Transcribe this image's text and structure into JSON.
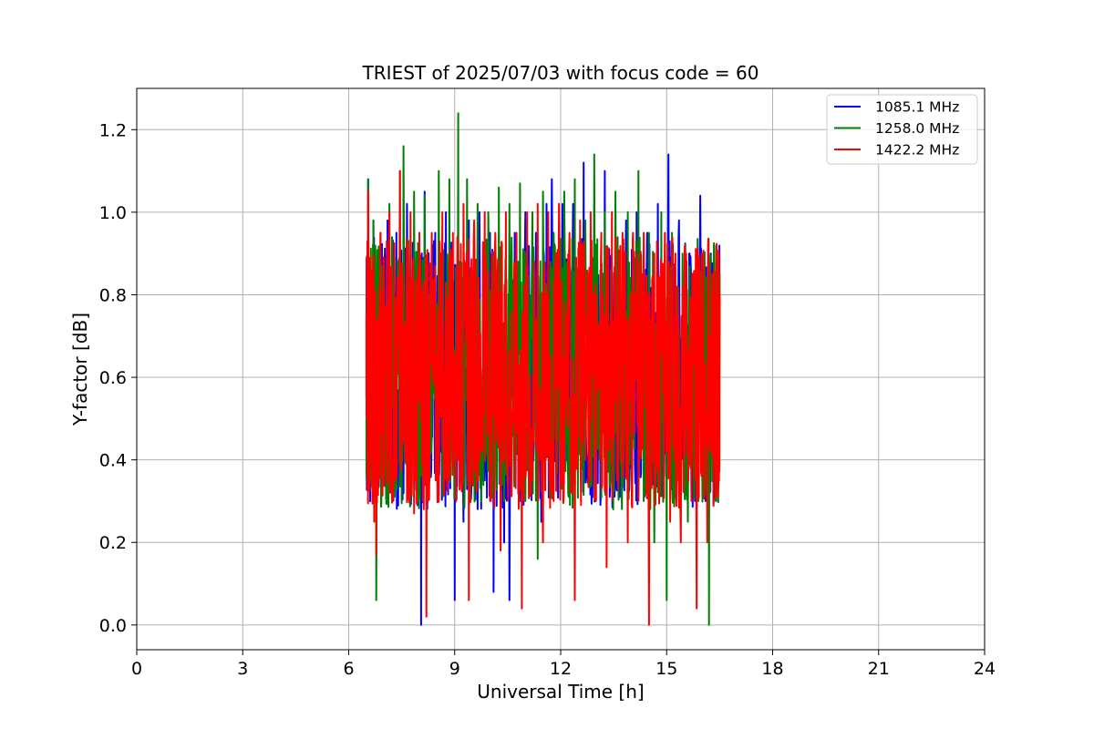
{
  "chart_data": {
    "type": "line",
    "title": "TRIEST of 2025/07/03 with focus code = 60",
    "xlabel": "Universal Time [h]",
    "ylabel": "Y-factor [dB]",
    "xlim": [
      0,
      24
    ],
    "ylim": [
      -0.06,
      1.3
    ],
    "xticks": [
      0,
      3,
      6,
      9,
      12,
      15,
      18,
      21,
      24
    ],
    "xtick_labels": [
      "0",
      "3",
      "6",
      "9",
      "12",
      "15",
      "18",
      "21",
      "24"
    ],
    "yticks": [
      0.0,
      0.2,
      0.4,
      0.6,
      0.8,
      1.0,
      1.2
    ],
    "ytick_labels": [
      "0.0",
      "0.2",
      "0.4",
      "0.6",
      "0.8",
      "1.0",
      "1.2"
    ],
    "grid": true,
    "legend_position": "top-right",
    "x_range_of_data": [
      6.5,
      16.5
    ],
    "series": [
      {
        "name": "1085.1 MHz",
        "color": "#0000ff",
        "points": [
          [
            6.5,
            0.55
          ],
          [
            6.55,
            1.08
          ],
          [
            6.62,
            0.62
          ],
          [
            6.7,
            0.98
          ],
          [
            6.8,
            0.4
          ],
          [
            6.9,
            0.92
          ],
          [
            7.0,
            0.5
          ],
          [
            7.1,
            0.98
          ],
          [
            7.2,
            0.37
          ],
          [
            7.35,
            0.95
          ],
          [
            7.5,
            0.55
          ],
          [
            7.65,
            1.02
          ],
          [
            7.8,
            0.45
          ],
          [
            7.95,
            0.29
          ],
          [
            8.05,
            0.0
          ],
          [
            8.15,
            1.05
          ],
          [
            8.3,
            0.48
          ],
          [
            8.45,
            0.95
          ],
          [
            8.6,
            0.42
          ],
          [
            8.75,
            1.0
          ],
          [
            8.9,
            0.5
          ],
          [
            9.0,
            0.06
          ],
          [
            9.1,
            0.9
          ],
          [
            9.25,
            0.25
          ],
          [
            9.4,
            0.98
          ],
          [
            9.55,
            0.45
          ],
          [
            9.7,
            1.0
          ],
          [
            9.85,
            0.35
          ],
          [
            10.0,
            0.95
          ],
          [
            10.1,
            0.08
          ],
          [
            10.25,
            0.9
          ],
          [
            10.4,
            0.2
          ],
          [
            10.55,
            0.06
          ],
          [
            10.7,
            0.95
          ],
          [
            10.85,
            0.3
          ],
          [
            11.0,
            1.0
          ],
          [
            11.15,
            0.4
          ],
          [
            11.3,
            0.95
          ],
          [
            11.45,
            0.25
          ],
          [
            11.6,
            1.02
          ],
          [
            11.75,
            1.08
          ],
          [
            11.9,
            0.45
          ],
          [
            12.05,
            1.02
          ],
          [
            12.2,
            0.4
          ],
          [
            12.35,
            1.02
          ],
          [
            12.5,
            0.55
          ],
          [
            12.65,
            1.12
          ],
          [
            12.8,
            0.5
          ],
          [
            12.95,
            1.02
          ],
          [
            13.1,
            0.45
          ],
          [
            13.25,
            1.1
          ],
          [
            13.4,
            0.35
          ],
          [
            13.55,
            1.0
          ],
          [
            13.7,
            0.45
          ],
          [
            13.85,
            0.98
          ],
          [
            14.0,
            0.38
          ],
          [
            14.15,
            1.0
          ],
          [
            14.3,
            0.5
          ],
          [
            14.45,
            0.95
          ],
          [
            14.6,
            0.35
          ],
          [
            14.75,
            1.02
          ],
          [
            14.9,
            0.4
          ],
          [
            15.05,
            1.14
          ],
          [
            15.2,
            0.48
          ],
          [
            15.35,
            0.98
          ],
          [
            15.5,
            0.35
          ],
          [
            15.65,
            0.9
          ],
          [
            15.8,
            0.3
          ],
          [
            15.95,
            1.04
          ],
          [
            16.1,
            0.3
          ],
          [
            16.25,
            0.9
          ],
          [
            16.4,
            0.3
          ],
          [
            16.5,
            0.7
          ]
        ]
      },
      {
        "name": "1258.0 MHz",
        "color": "#008000",
        "points": [
          [
            6.5,
            0.5
          ],
          [
            6.55,
            1.08
          ],
          [
            6.62,
            0.55
          ],
          [
            6.7,
            0.98
          ],
          [
            6.78,
            0.06
          ],
          [
            6.9,
            0.95
          ],
          [
            7.0,
            0.35
          ],
          [
            7.15,
            1.02
          ],
          [
            7.3,
            0.31
          ],
          [
            7.45,
            1.1
          ],
          [
            7.55,
            1.16
          ],
          [
            7.7,
            0.45
          ],
          [
            7.85,
            1.05
          ],
          [
            8.0,
            0.5
          ],
          [
            8.15,
            1.04
          ],
          [
            8.35,
            0.45
          ],
          [
            8.55,
            1.1
          ],
          [
            8.7,
            0.45
          ],
          [
            8.85,
            1.08
          ],
          [
            9.0,
            0.5
          ],
          [
            9.1,
            1.24
          ],
          [
            9.2,
            0.35
          ],
          [
            9.35,
            1.08
          ],
          [
            9.5,
            0.4
          ],
          [
            9.65,
            1.02
          ],
          [
            9.8,
            0.45
          ],
          [
            9.95,
            1.0
          ],
          [
            10.1,
            0.35
          ],
          [
            10.25,
            1.06
          ],
          [
            10.4,
            0.3
          ],
          [
            10.55,
            1.02
          ],
          [
            10.7,
            0.35
          ],
          [
            10.85,
            1.07
          ],
          [
            11.0,
            0.3
          ],
          [
            11.2,
            1.0
          ],
          [
            11.35,
            0.16
          ],
          [
            11.5,
            1.05
          ],
          [
            11.65,
            0.5
          ],
          [
            11.8,
            0.95
          ],
          [
            11.95,
            0.45
          ],
          [
            12.1,
            1.05
          ],
          [
            12.25,
            0.55
          ],
          [
            12.4,
            1.08
          ],
          [
            12.55,
            0.45
          ],
          [
            12.7,
            0.98
          ],
          [
            12.85,
            0.5
          ],
          [
            12.95,
            1.14
          ],
          [
            13.1,
            0.4
          ],
          [
            13.25,
            1.0
          ],
          [
            13.4,
            0.35
          ],
          [
            13.55,
            1.05
          ],
          [
            13.7,
            0.4
          ],
          [
            13.9,
            1.0
          ],
          [
            14.05,
            0.45
          ],
          [
            14.2,
            1.1
          ],
          [
            14.35,
            0.3
          ],
          [
            14.5,
            0.95
          ],
          [
            14.65,
            0.2
          ],
          [
            14.85,
            1.0
          ],
          [
            15.0,
            0.06
          ],
          [
            15.15,
            0.95
          ],
          [
            15.3,
            0.35
          ],
          [
            15.45,
            0.9
          ],
          [
            15.6,
            0.25
          ],
          [
            15.75,
            0.85
          ],
          [
            15.9,
            0.3
          ],
          [
            16.05,
            0.88
          ],
          [
            16.2,
            0.0
          ],
          [
            16.3,
            0.8
          ],
          [
            16.45,
            0.35
          ],
          [
            16.5,
            0.85
          ]
        ]
      },
      {
        "name": "1422.2 MHz",
        "color": "#ff0000",
        "points": [
          [
            6.5,
            0.75
          ],
          [
            6.55,
            1.05
          ],
          [
            6.65,
            0.65
          ],
          [
            6.72,
            0.25
          ],
          [
            6.78,
            0.17
          ],
          [
            6.9,
            0.95
          ],
          [
            7.0,
            0.45
          ],
          [
            7.15,
            1.0
          ],
          [
            7.3,
            0.55
          ],
          [
            7.45,
            1.1
          ],
          [
            7.6,
            0.4
          ],
          [
            7.75,
            1.0
          ],
          [
            7.85,
            0.27
          ],
          [
            8.0,
            0.95
          ],
          [
            8.1,
            0.3
          ],
          [
            8.2,
            0.02
          ],
          [
            8.35,
            0.95
          ],
          [
            8.5,
            0.45
          ],
          [
            8.65,
            1.0
          ],
          [
            8.8,
            0.35
          ],
          [
            8.95,
            0.95
          ],
          [
            9.1,
            0.4
          ],
          [
            9.25,
            1.02
          ],
          [
            9.4,
            0.06
          ],
          [
            9.55,
            0.98
          ],
          [
            9.7,
            0.4
          ],
          [
            9.85,
            1.0
          ],
          [
            10.0,
            0.3
          ],
          [
            10.15,
            0.95
          ],
          [
            10.3,
            0.18
          ],
          [
            10.45,
            1.0
          ],
          [
            10.6,
            0.35
          ],
          [
            10.75,
            0.95
          ],
          [
            10.9,
            0.04
          ],
          [
            11.05,
            1.0
          ],
          [
            11.2,
            0.35
          ],
          [
            11.35,
            1.02
          ],
          [
            11.5,
            0.2
          ],
          [
            11.65,
            1.0
          ],
          [
            11.8,
            0.3
          ],
          [
            11.95,
            1.02
          ],
          [
            12.1,
            0.4
          ],
          [
            12.25,
            0.95
          ],
          [
            12.4,
            0.06
          ],
          [
            12.55,
            0.98
          ],
          [
            12.7,
            0.4
          ],
          [
            12.85,
            1.0
          ],
          [
            13.0,
            0.3
          ],
          [
            13.15,
            0.95
          ],
          [
            13.3,
            0.14
          ],
          [
            13.45,
            1.0
          ],
          [
            13.6,
            0.35
          ],
          [
            13.75,
            0.95
          ],
          [
            13.9,
            0.2
          ],
          [
            14.05,
            0.95
          ],
          [
            14.2,
            0.3
          ],
          [
            14.35,
            0.95
          ],
          [
            14.5,
            0.0
          ],
          [
            14.65,
            0.9
          ],
          [
            14.8,
            0.35
          ],
          [
            14.95,
            0.95
          ],
          [
            15.1,
            0.25
          ],
          [
            15.25,
            0.9
          ],
          [
            15.4,
            0.2
          ],
          [
            15.55,
            0.9
          ],
          [
            15.7,
            0.3
          ],
          [
            15.85,
            0.04
          ],
          [
            16.0,
            0.9
          ],
          [
            16.15,
            0.2
          ],
          [
            16.3,
            0.85
          ],
          [
            16.45,
            0.31
          ],
          [
            16.5,
            0.8
          ]
        ]
      }
    ]
  }
}
